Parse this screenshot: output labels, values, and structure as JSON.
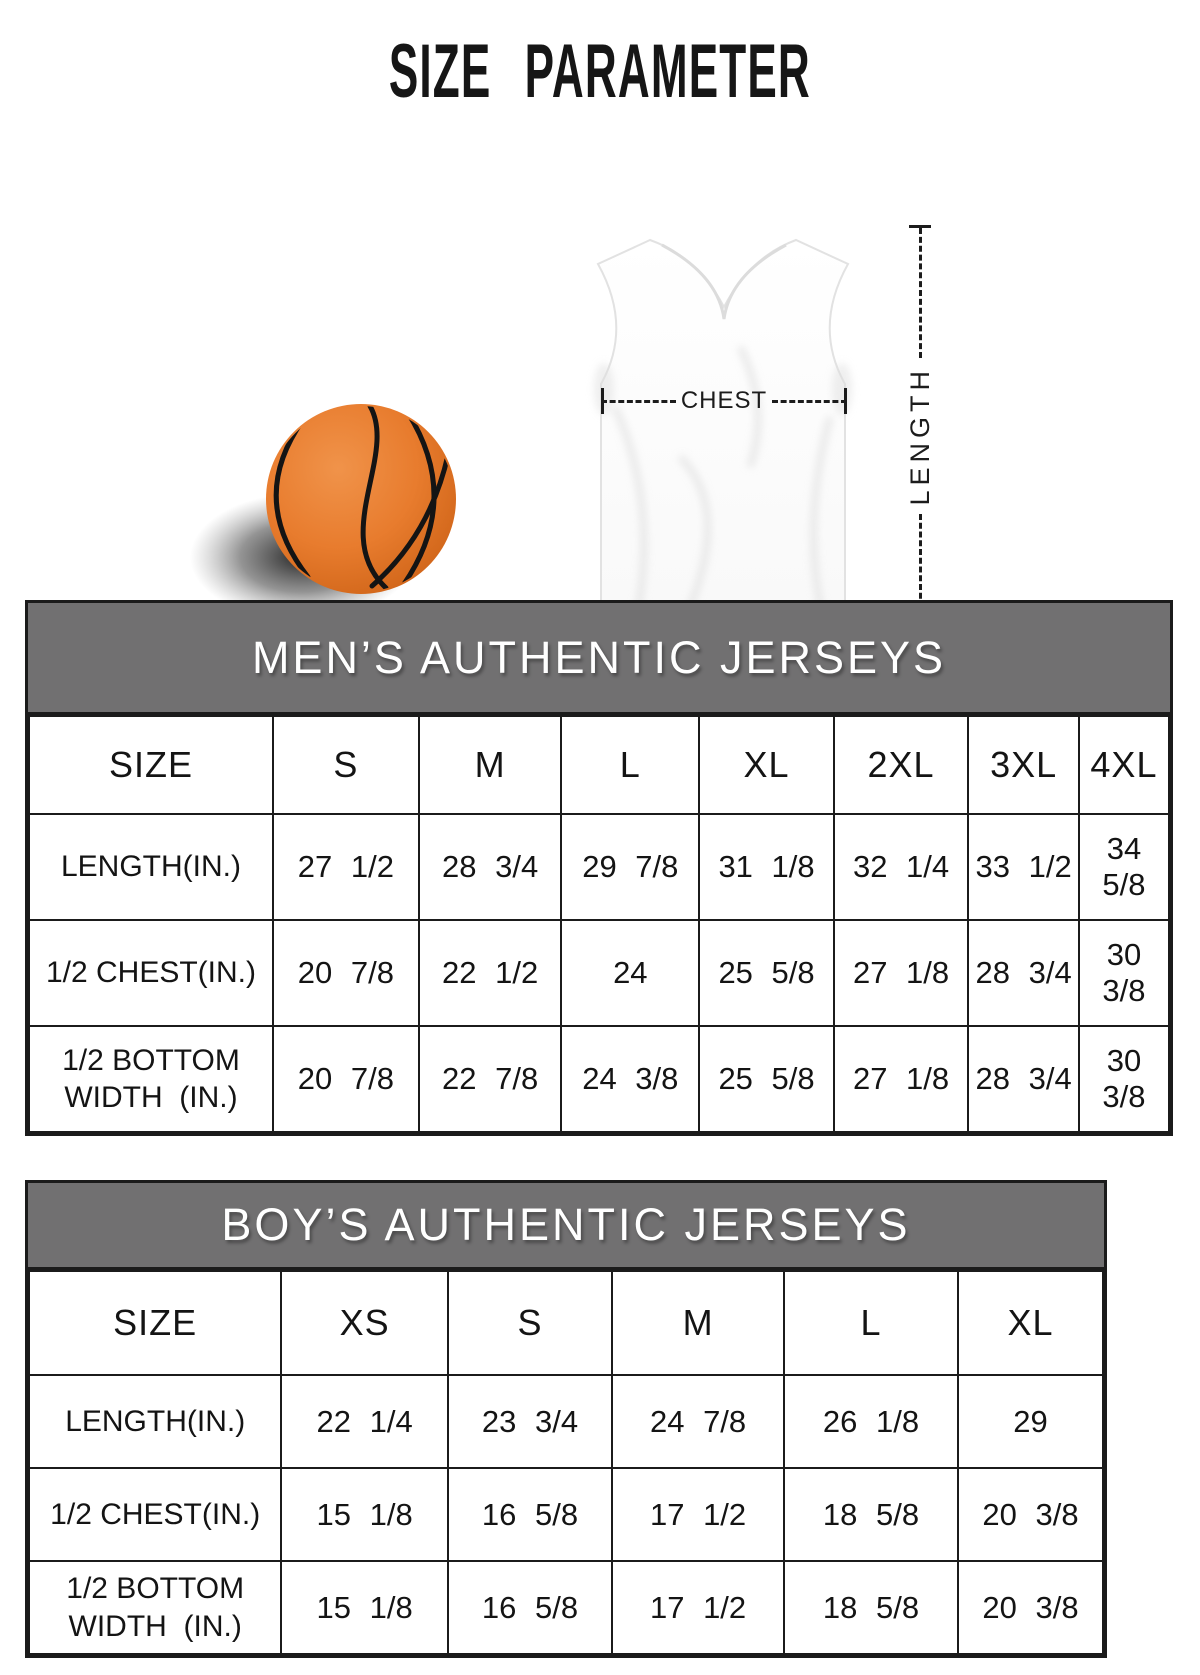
{
  "page_title": "SIZE  PARAMETER",
  "figure": {
    "chest_label": "CHEST",
    "length_label": "LENGTH"
  },
  "colors": {
    "band_gray": "#717071",
    "table_border": "#1b1b1b",
    "basketball_orange": "#e87c2e",
    "seam_black": "#141414"
  },
  "chart_data": [
    {
      "type": "table",
      "title": "MEN’S AUTHENTIC JERSEYS",
      "corner_header": "SIZE",
      "columns": [
        "S",
        "M",
        "L",
        "XL",
        "2XL",
        "3XL",
        "4XL"
      ],
      "rows": [
        {
          "label": "LENGTH(IN.)",
          "values": [
            "27 1/2",
            "28 3/4",
            "29 7/8",
            "31 1/8",
            "32 1/4",
            "33 1/2",
            "34 5/8"
          ]
        },
        {
          "label": "1/2 CHEST(IN.)",
          "values": [
            "20 7/8",
            "22 1/2",
            "24",
            "25 5/8",
            "27 1/8",
            "28 3/4",
            "30 3/8"
          ]
        },
        {
          "label": "1/2 BOTTOM\nWIDTH  (IN.)",
          "values": [
            "20 7/8",
            "22 7/8",
            "24 3/8",
            "25 5/8",
            "27 1/8",
            "28 3/4",
            "30 3/8"
          ]
        }
      ]
    },
    {
      "type": "table",
      "title": "BOY’S AUTHENTIC JERSEYS",
      "corner_header": "SIZE",
      "columns": [
        "XS",
        "S",
        "M",
        "L",
        "XL"
      ],
      "rows": [
        {
          "label": "LENGTH(IN.)",
          "values": [
            "22 1/4",
            "23 3/4",
            "24 7/8",
            "26 1/8",
            "29"
          ]
        },
        {
          "label": "1/2 CHEST(IN.)",
          "values": [
            "15 1/8",
            "16 5/8",
            "17 1/2",
            "18 5/8",
            "20 3/8"
          ]
        },
        {
          "label": "1/2 BOTTOM\nWIDTH  (IN.)",
          "values": [
            "15 1/8",
            "16 5/8",
            "17 1/2",
            "18 5/8",
            "20 3/8"
          ]
        }
      ]
    }
  ]
}
